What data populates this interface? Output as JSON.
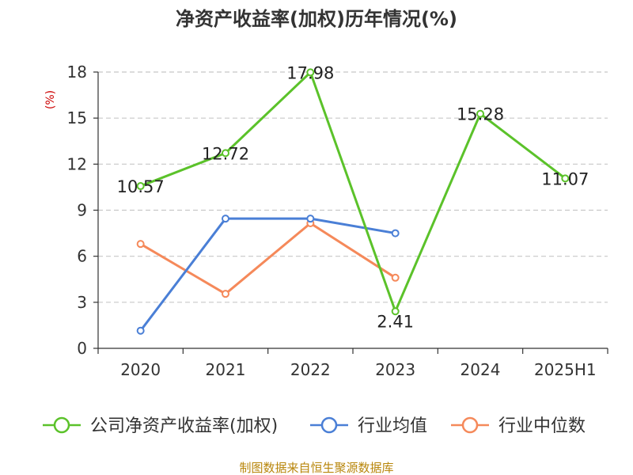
{
  "chart_data": {
    "type": "line",
    "title": "净资产收益率(加权)历年情况(%)",
    "ylabel": "(%)",
    "xlabel": "",
    "categories": [
      "2020",
      "2021",
      "2022",
      "2023",
      "2024",
      "2025H1"
    ],
    "ylim": [
      0,
      18
    ],
    "yticks": [
      0,
      3,
      6,
      9,
      12,
      15,
      18
    ],
    "grid": "horizontal-dashed",
    "legend_position": "bottom",
    "series": [
      {
        "name": "公司净资产收益率(加权)",
        "color": "#5bc22a",
        "values": [
          10.57,
          12.72,
          17.98,
          2.41,
          15.28,
          11.07
        ],
        "labels": [
          "10.57",
          "12.72",
          "17.98",
          "2.41",
          "15.28",
          "11.07"
        ]
      },
      {
        "name": "行业均值",
        "color": "#4a7fd6",
        "values": [
          1.15,
          8.45,
          8.45,
          7.5,
          null,
          null
        ]
      },
      {
        "name": "行业中位数",
        "color": "#f5895a",
        "values": [
          6.8,
          3.55,
          8.15,
          4.6,
          null,
          null
        ]
      }
    ]
  },
  "footer": "制图数据来自恒生聚源数据库"
}
